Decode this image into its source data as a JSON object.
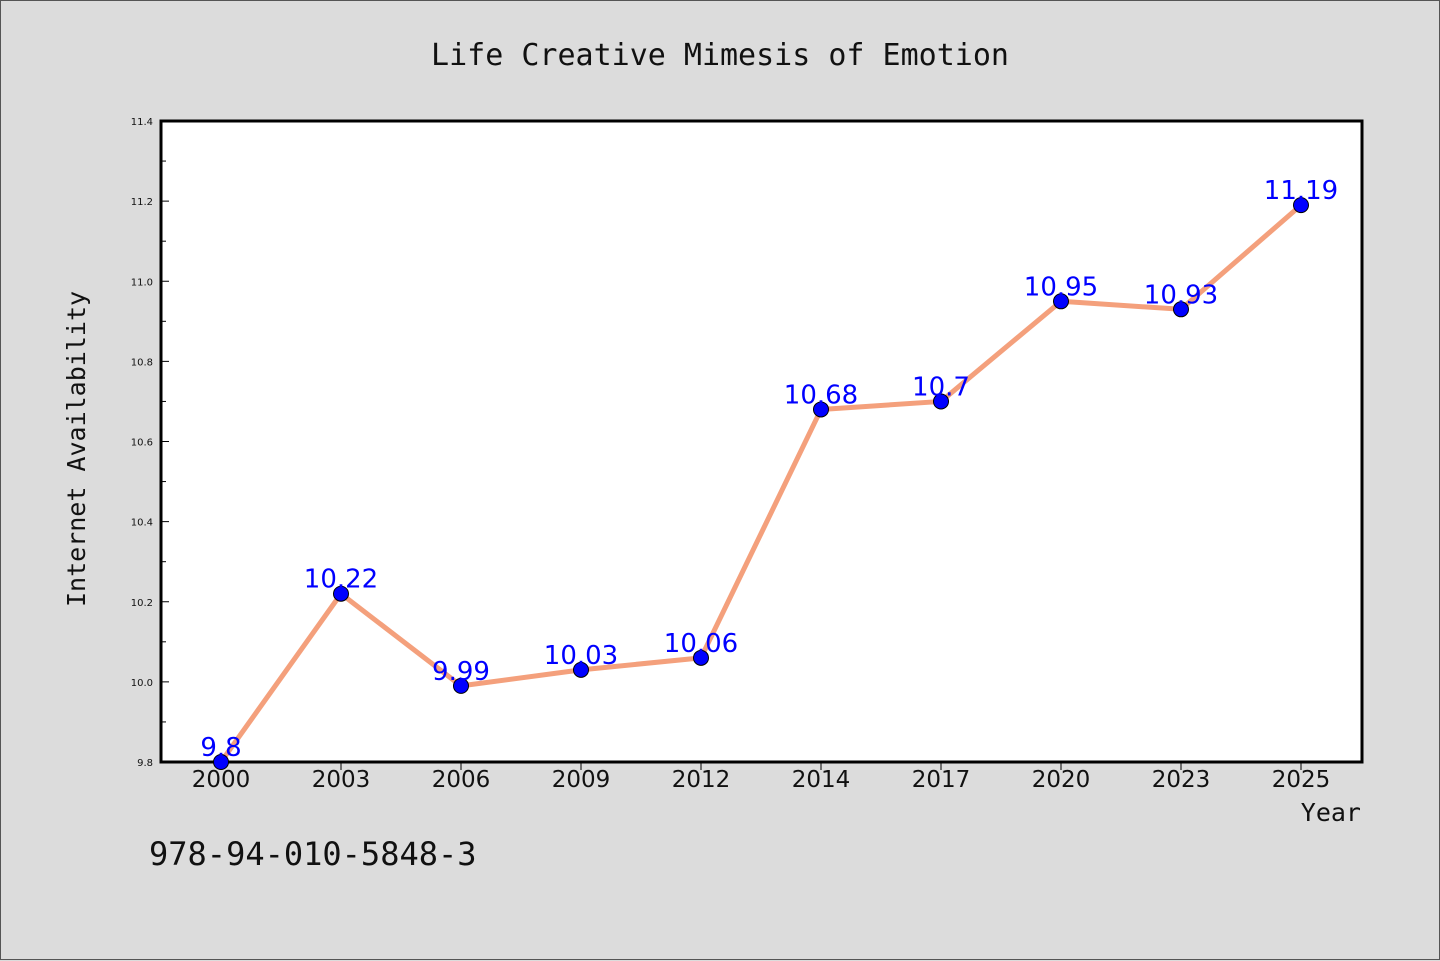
{
  "isbn_text": "978-94-010-5848-3",
  "colors": {
    "background": "#dcdcdc",
    "plot_background": "#ffffff",
    "line": "#f4a07c",
    "marker": "#0000ff",
    "data_label": "#0000ff"
  },
  "chart_data": {
    "type": "line",
    "title": "Life Creative Mimesis of Emotion",
    "xlabel": "Year",
    "ylabel": "Internet Availability",
    "categories": [
      "2000",
      "2003",
      "2006",
      "2009",
      "2012",
      "2014",
      "2017",
      "2020",
      "2023",
      "2025"
    ],
    "series": [
      {
        "values": [
          9.8,
          10.22,
          9.99,
          10.03,
          10.06,
          10.68,
          10.7,
          10.95,
          10.93,
          11.19
        ],
        "labels": [
          "9.8",
          "10.22",
          "9.99",
          "10.03",
          "10.06",
          "10.68",
          "10.7",
          "10.95",
          "10.93",
          "11.19"
        ]
      }
    ],
    "ylim": [
      9.8,
      11.4
    ],
    "yticks": [
      "9.8",
      "10.0",
      "10.2",
      "10.4",
      "10.6",
      "10.8",
      "11.0",
      "11.2",
      "11.4"
    ],
    "grid": false,
    "legend": "none",
    "marker": "circle"
  }
}
